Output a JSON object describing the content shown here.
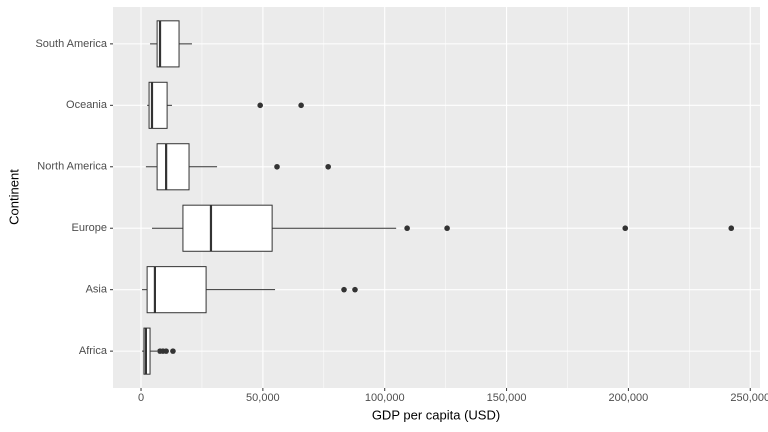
{
  "chart_data": {
    "type": "boxplot",
    "orientation": "horizontal",
    "x_label": "GDP per capita (USD)",
    "y_label": "Continent",
    "categories": [
      "Africa",
      "Asia",
      "Europe",
      "North America",
      "Oceania",
      "South America"
    ],
    "boxes": [
      {
        "min": 400,
        "q1": 1200,
        "median": 2000,
        "q3": 3700,
        "max": 6600,
        "outliers": [
          7800,
          9000,
          10300,
          13100
        ]
      },
      {
        "min": 400,
        "q1": 2500,
        "median": 5700,
        "q3": 26700,
        "max": 55000,
        "outliers": [
          83300,
          87800
        ]
      },
      {
        "min": 4500,
        "q1": 17200,
        "median": 28700,
        "q3": 53800,
        "max": 104700,
        "outliers": [
          109200,
          125600,
          198700,
          242200
        ]
      },
      {
        "min": 2000,
        "q1": 6600,
        "median": 10300,
        "q3": 19700,
        "max": 31200,
        "outliers": [
          55800,
          76800
        ]
      },
      {
        "min": 2500,
        "q1": 3300,
        "median": 4500,
        "q3": 10700,
        "max": 12700,
        "outliers": [
          48900,
          65700
        ]
      },
      {
        "min": 3700,
        "q1": 6600,
        "median": 7800,
        "q3": 15600,
        "max": 20900,
        "outliers": []
      }
    ],
    "xlim": [
      -11500,
      254000
    ],
    "xticks": [
      0,
      {
        "value": 50000,
        "label": "50,000"
      },
      {
        "value": 100000,
        "label": "100,000"
      },
      {
        "value": 150000,
        "label": "150,000"
      },
      {
        "value": 200000,
        "label": "200,000"
      },
      {
        "value": 250000,
        "label": "250,000"
      }
    ],
    "grid": true,
    "box_fill": "#ffffff",
    "line_color": "#333333",
    "background": "#ebebeb"
  }
}
